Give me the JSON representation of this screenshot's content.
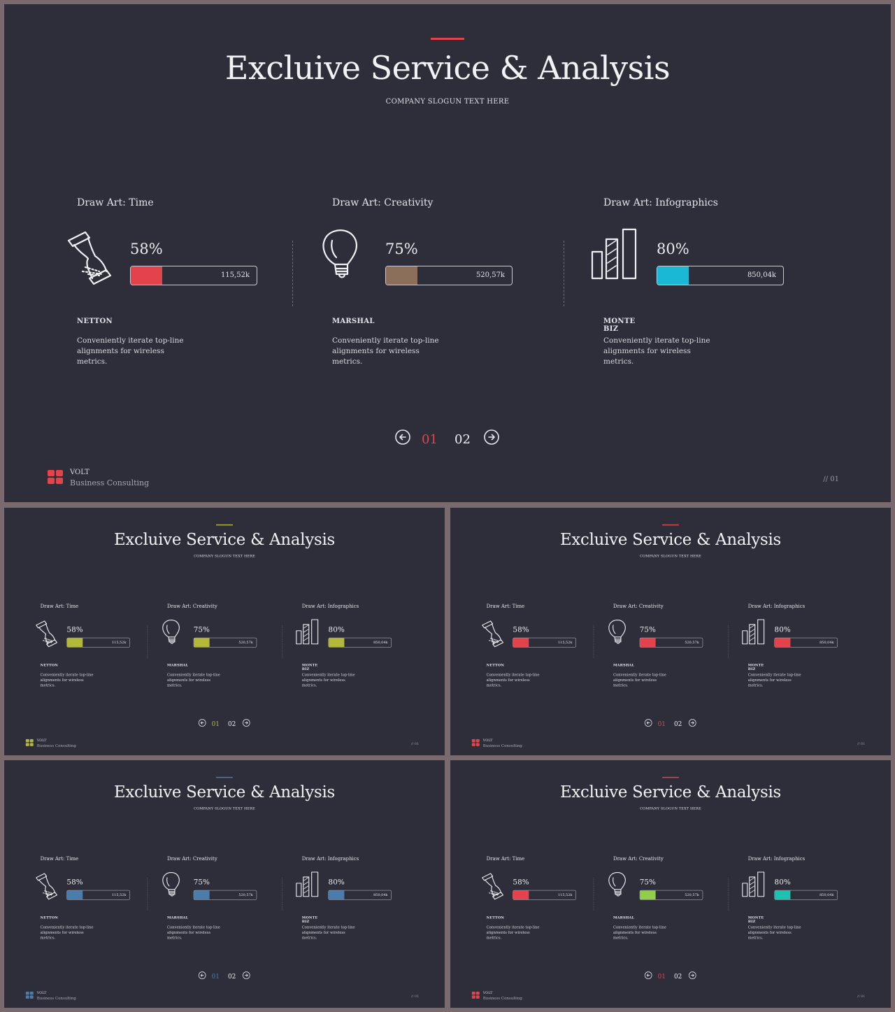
{
  "title": "Excluive Service & Analysis",
  "slogan": "COMPANY SLOGUN TEXT HERE",
  "columns": [
    {
      "heading": "Draw Art: Time",
      "icon": "hourglass-icon",
      "percent": "58%",
      "fill": 0.25,
      "value": "115,52k",
      "name": "NETTON",
      "desc": "Conveniently iterate top-line alignments for wireless metrics."
    },
    {
      "heading": "Draw Art: Creativity",
      "icon": "lightbulb-icon",
      "percent": "75%",
      "fill": 0.25,
      "value": "520,57k",
      "name": "MARSHAL",
      "desc": "Conveniently iterate top-line alignments for wireless metrics."
    },
    {
      "heading": "Draw Art: Infographics",
      "icon": "bar-chart-icon",
      "percent": "80%",
      "fill": 0.25,
      "value": "850,04k",
      "name": "MONTE BIZ",
      "desc": "Conveniently iterate top-line alignments for wireless metrics."
    }
  ],
  "pager": {
    "current": "01",
    "next": "02"
  },
  "footer": {
    "brand": "VOLT",
    "tagline": "Business  Consulting",
    "page": "// 01"
  },
  "slides": [
    {
      "accent": "#e5434b",
      "bars": [
        "#e5434b",
        "#8b6f5a",
        "#1ab8d4"
      ],
      "logo": "#e5434b"
    },
    {
      "accent": "#b4b838",
      "bars": [
        "#b4b838",
        "#b4b838",
        "#b4b838"
      ],
      "logo": "#b4b838"
    },
    {
      "accent": "#e5434b",
      "bars": [
        "#e5434b",
        "#e5434b",
        "#e5434b"
      ],
      "logo": "#e5434b"
    },
    {
      "accent": "#4a7cae",
      "bars": [
        "#4a7cae",
        "#4a7cae",
        "#4a7cae"
      ],
      "logo": "#4a7cae"
    },
    {
      "accent": "#e5434b",
      "bars": [
        "#e5434b",
        "#8fcf4a",
        "#1fc2b2"
      ],
      "logo": "#e5434b"
    }
  ]
}
